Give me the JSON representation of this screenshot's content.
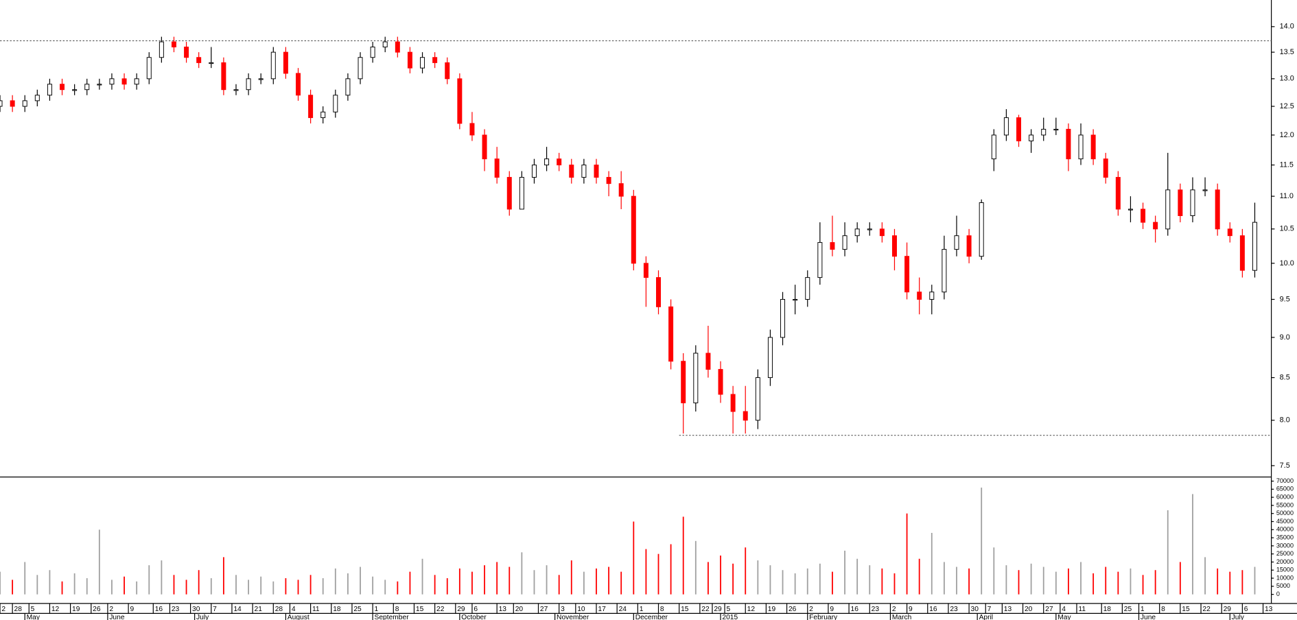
{
  "chart_data": {
    "type": "candlestick",
    "log_y": true,
    "xlim": [
      0,
      307
    ],
    "ylim": [
      7.38,
      14.54
    ],
    "yticks": [
      {
        "value": 7.5,
        "label": "7.5"
      },
      {
        "value": 8,
        "label": "8.0"
      },
      {
        "value": 8.5,
        "label": "8.5"
      },
      {
        "value": 9,
        "label": "9.0"
      },
      {
        "value": 9.5,
        "label": "9.5"
      },
      {
        "value": 10,
        "label": "10.0"
      },
      {
        "value": 10.5,
        "label": "10.5"
      },
      {
        "value": 11,
        "label": "11.0"
      },
      {
        "value": 11.5,
        "label": "11.5"
      },
      {
        "value": 12,
        "label": "12.0"
      },
      {
        "value": 12.5,
        "label": "12.5"
      },
      {
        "value": 13,
        "label": "13.0"
      },
      {
        "value": 13.5,
        "label": "13.5"
      },
      {
        "value": 14,
        "label": "14.0"
      }
    ],
    "xticks": [
      {
        "value": 0,
        "label": "2"
      },
      {
        "value": 3,
        "label": "28"
      },
      {
        "value": 7,
        "label": "5"
      },
      {
        "value": 12,
        "label": "12"
      },
      {
        "value": 17,
        "label": "19"
      },
      {
        "value": 22,
        "label": "26"
      },
      {
        "value": 26,
        "label": "2"
      },
      {
        "value": 31,
        "label": "9"
      },
      {
        "value": 37,
        "label": "16"
      },
      {
        "value": 41,
        "label": "23"
      },
      {
        "value": 46,
        "label": "30"
      },
      {
        "value": 51,
        "label": "7"
      },
      {
        "value": 56,
        "label": "14"
      },
      {
        "value": 61,
        "label": "21"
      },
      {
        "value": 66,
        "label": "28"
      },
      {
        "value": 70,
        "label": "4"
      },
      {
        "value": 75,
        "label": "11"
      },
      {
        "value": 80,
        "label": "18"
      },
      {
        "value": 85,
        "label": "25"
      },
      {
        "value": 90,
        "label": "1"
      },
      {
        "value": 95,
        "label": "8"
      },
      {
        "value": 100,
        "label": "15"
      },
      {
        "value": 105,
        "label": "22"
      },
      {
        "value": 110,
        "label": "29"
      },
      {
        "value": 114,
        "label": "6"
      },
      {
        "value": 120,
        "label": "13"
      },
      {
        "value": 124,
        "label": "20"
      },
      {
        "value": 130,
        "label": "27"
      },
      {
        "value": 135,
        "label": "3"
      },
      {
        "value": 139,
        "label": "10"
      },
      {
        "value": 144,
        "label": "17"
      },
      {
        "value": 149,
        "label": "24"
      },
      {
        "value": 154,
        "label": "1"
      },
      {
        "value": 159,
        "label": "8"
      },
      {
        "value": 164,
        "label": "15"
      },
      {
        "value": 169,
        "label": "22"
      },
      {
        "value": 172,
        "label": "29"
      },
      {
        "value": 175,
        "label": "5"
      },
      {
        "value": 180,
        "label": "12"
      },
      {
        "value": 185,
        "label": "19"
      },
      {
        "value": 190,
        "label": "26"
      },
      {
        "value": 195,
        "label": "2"
      },
      {
        "value": 200,
        "label": "9"
      },
      {
        "value": 205,
        "label": "16"
      },
      {
        "value": 210,
        "label": "23"
      },
      {
        "value": 215,
        "label": "2"
      },
      {
        "value": 219,
        "label": "9"
      },
      {
        "value": 224,
        "label": "16"
      },
      {
        "value": 229,
        "label": "23"
      },
      {
        "value": 234,
        "label": "30"
      },
      {
        "value": 238,
        "label": "7"
      },
      {
        "value": 242,
        "label": "13"
      },
      {
        "value": 247,
        "label": "20"
      },
      {
        "value": 252,
        "label": "27"
      },
      {
        "value": 256,
        "label": "4"
      },
      {
        "value": 260,
        "label": "11"
      },
      {
        "value": 266,
        "label": "18"
      },
      {
        "value": 271,
        "label": "25"
      },
      {
        "value": 275,
        "label": "1"
      },
      {
        "value": 280,
        "label": "8"
      },
      {
        "value": 285,
        "label": "15"
      },
      {
        "value": 290,
        "label": "22"
      },
      {
        "value": 295,
        "label": "29"
      },
      {
        "value": 300,
        "label": "6"
      },
      {
        "value": 305,
        "label": "13"
      }
    ],
    "months": [
      {
        "value": 6,
        "label": "May"
      },
      {
        "value": 26,
        "label": "June"
      },
      {
        "value": 47,
        "label": "July"
      },
      {
        "value": 69,
        "label": "August"
      },
      {
        "value": 90,
        "label": "September"
      },
      {
        "value": 111,
        "label": "October"
      },
      {
        "value": 134,
        "label": "November"
      },
      {
        "value": 153,
        "label": "December"
      },
      {
        "value": 174,
        "label": "2015"
      },
      {
        "value": 195,
        "label": "February"
      },
      {
        "value": 215,
        "label": "March"
      },
      {
        "value": 236,
        "label": "April"
      },
      {
        "value": 255,
        "label": "May"
      },
      {
        "value": 275,
        "label": "June"
      },
      {
        "value": 297,
        "label": "July"
      }
    ],
    "reference_lines": [
      {
        "value": 13.72,
        "x_start": 0
      },
      {
        "value": 7.83,
        "x_start": 164
      }
    ],
    "up_color": "#000000",
    "down_color": "#ff0000",
    "x": [
      0,
      3,
      6,
      9,
      12,
      15,
      18,
      21,
      24,
      27,
      30,
      33,
      36,
      39,
      42,
      45,
      48,
      51,
      54,
      57,
      60,
      63,
      66,
      69,
      72,
      75,
      78,
      81,
      84,
      87,
      90,
      93,
      96,
      99,
      102,
      105,
      108,
      111,
      114,
      117,
      120,
      123,
      126,
      129,
      132,
      135,
      138,
      141,
      144,
      147,
      150,
      153,
      156,
      159,
      162,
      165,
      168,
      171,
      174,
      177,
      180,
      183,
      186,
      189,
      192,
      195,
      198,
      201,
      204,
      207,
      210,
      213,
      216,
      219,
      222,
      225,
      228,
      231,
      234,
      237,
      240,
      243,
      246,
      249,
      252,
      255,
      258,
      261,
      264,
      267,
      270,
      273,
      276,
      279,
      282,
      285,
      288,
      291,
      294,
      297,
      300,
      303
    ],
    "open": [
      12.5,
      12.6,
      12.5,
      12.6,
      12.7,
      12.9,
      12.8,
      12.8,
      12.9,
      12.9,
      13.0,
      12.9,
      13.0,
      13.4,
      13.7,
      13.6,
      13.4,
      13.3,
      13.3,
      12.8,
      12.8,
      13.0,
      13.0,
      13.5,
      13.1,
      12.7,
      12.3,
      12.4,
      12.7,
      13.0,
      13.4,
      13.6,
      13.7,
      13.5,
      13.2,
      13.4,
      13.3,
      13.0,
      12.2,
      12.0,
      11.6,
      11.3,
      10.8,
      11.3,
      11.5,
      11.6,
      11.5,
      11.3,
      11.5,
      11.3,
      11.2,
      11.0,
      10.0,
      9.8,
      9.4,
      8.7,
      8.2,
      8.8,
      8.6,
      8.3,
      8.1,
      8.0,
      8.5,
      9.0,
      9.5,
      9.5,
      9.8,
      10.3,
      10.2,
      10.4,
      10.5,
      10.5,
      10.4,
      10.1,
      9.6,
      9.5,
      9.6,
      10.2,
      10.4,
      10.1,
      11.6,
      12.0,
      12.3,
      11.9,
      12.0,
      12.1,
      12.1,
      11.6,
      12.0,
      11.6,
      11.3,
      10.8,
      10.8,
      10.6,
      10.5,
      11.1,
      10.7,
      11.1,
      11.1,
      10.5,
      10.4,
      9.9
    ],
    "high": [
      12.7,
      12.7,
      12.7,
      12.8,
      13.0,
      13.0,
      12.9,
      13.0,
      13.0,
      13.1,
      13.1,
      13.1,
      13.5,
      13.8,
      13.8,
      13.7,
      13.5,
      13.6,
      13.4,
      12.9,
      13.1,
      13.1,
      13.6,
      13.6,
      13.2,
      12.8,
      12.5,
      12.8,
      13.1,
      13.5,
      13.7,
      13.8,
      13.8,
      13.6,
      13.5,
      13.5,
      13.4,
      13.1,
      12.4,
      12.1,
      11.8,
      11.4,
      11.4,
      11.6,
      11.8,
      11.7,
      11.6,
      11.6,
      11.6,
      11.4,
      11.4,
      11.1,
      10.1,
      9.9,
      9.5,
      8.8,
      8.9,
      9.15,
      8.7,
      8.4,
      8.4,
      8.6,
      9.1,
      9.6,
      9.7,
      9.9,
      10.6,
      10.7,
      10.6,
      10.6,
      10.6,
      10.6,
      10.5,
      10.3,
      9.8,
      9.7,
      10.4,
      10.7,
      10.5,
      10.95,
      12.1,
      12.45,
      12.35,
      12.1,
      12.3,
      12.3,
      12.2,
      12.2,
      12.1,
      11.7,
      11.4,
      11.0,
      10.9,
      10.7,
      11.7,
      11.2,
      11.3,
      11.3,
      11.2,
      10.6,
      10.5,
      10.9
    ],
    "low": [
      12.4,
      12.4,
      12.4,
      12.5,
      12.6,
      12.7,
      12.7,
      12.7,
      12.8,
      12.8,
      12.8,
      12.8,
      12.9,
      13.3,
      13.5,
      13.3,
      13.2,
      13.2,
      12.7,
      12.7,
      12.7,
      12.9,
      12.9,
      13.0,
      12.6,
      12.2,
      12.2,
      12.3,
      12.6,
      12.9,
      13.3,
      13.5,
      13.4,
      13.1,
      13.1,
      13.2,
      12.9,
      12.1,
      11.9,
      11.4,
      11.2,
      10.7,
      10.8,
      11.2,
      11.4,
      11.4,
      11.2,
      11.2,
      11.2,
      11.0,
      10.8,
      9.9,
      9.4,
      9.3,
      8.6,
      7.85,
      8.1,
      8.5,
      8.2,
      7.85,
      7.85,
      7.9,
      8.4,
      8.9,
      9.3,
      9.4,
      9.7,
      10.1,
      10.1,
      10.3,
      10.4,
      10.3,
      9.9,
      9.5,
      9.3,
      9.3,
      9.5,
      10.1,
      10.0,
      10.05,
      11.4,
      11.9,
      11.8,
      11.7,
      11.9,
      12.0,
      11.4,
      11.5,
      11.5,
      11.2,
      10.7,
      10.6,
      10.5,
      10.3,
      10.4,
      10.6,
      10.6,
      11.0,
      10.4,
      10.3,
      9.8,
      9.8
    ],
    "close": [
      12.6,
      12.5,
      12.6,
      12.7,
      12.9,
      12.8,
      12.8,
      12.9,
      12.9,
      13.0,
      12.9,
      13.0,
      13.4,
      13.7,
      13.6,
      13.4,
      13.3,
      13.3,
      12.8,
      12.8,
      13.0,
      13.0,
      13.5,
      13.1,
      12.7,
      12.3,
      12.4,
      12.7,
      13.0,
      13.4,
      13.6,
      13.7,
      13.5,
      13.2,
      13.4,
      13.3,
      13.0,
      12.2,
      12.0,
      11.6,
      11.3,
      10.8,
      11.3,
      11.5,
      11.6,
      11.5,
      11.3,
      11.5,
      11.3,
      11.2,
      11.0,
      10.0,
      9.8,
      9.4,
      8.7,
      8.2,
      8.8,
      8.6,
      8.3,
      8.1,
      8.0,
      8.5,
      9.0,
      9.5,
      9.5,
      9.8,
      10.3,
      10.2,
      10.4,
      10.5,
      10.5,
      10.4,
      10.1,
      9.6,
      9.5,
      9.6,
      10.2,
      10.4,
      10.1,
      10.9,
      12.0,
      12.3,
      11.9,
      12.0,
      12.1,
      12.1,
      11.6,
      12.0,
      11.6,
      11.3,
      10.8,
      10.8,
      10.6,
      10.5,
      11.1,
      10.7,
      11.1,
      11.1,
      10.5,
      10.4,
      9.9,
      10.6
    ],
    "volume": {
      "ylim": [
        0,
        70000
      ],
      "yticks": [
        0,
        5000,
        10000,
        15000,
        20000,
        25000,
        30000,
        35000,
        40000,
        45000,
        50000,
        55000,
        60000,
        65000,
        70000
      ],
      "up_color": "#a0a0a0",
      "down_color": "#ff0000",
      "values": [
        14000,
        9000,
        20000,
        12000,
        15000,
        8000,
        13000,
        10000,
        40000,
        9000,
        11000,
        8000,
        18000,
        21000,
        12000,
        9000,
        15000,
        10000,
        23000,
        12000,
        9000,
        11000,
        8000,
        10000,
        9000,
        12000,
        10000,
        16000,
        13000,
        17000,
        11000,
        9000,
        8000,
        14000,
        22000,
        12000,
        10000,
        16000,
        14000,
        18000,
        20000,
        17000,
        26000,
        15000,
        18000,
        12000,
        21000,
        14000,
        16000,
        17000,
        14000,
        45000,
        28000,
        25000,
        31000,
        48000,
        33000,
        20000,
        24000,
        19000,
        29000,
        21000,
        18000,
        15000,
        13000,
        16000,
        19000,
        14000,
        27000,
        22000,
        18000,
        16000,
        13000,
        50000,
        22000,
        38000,
        20000,
        17000,
        16000,
        66000,
        29000,
        18000,
        15000,
        19000,
        17000,
        14000,
        16000,
        20000,
        13000,
        17000,
        14000,
        16000,
        12000,
        15000,
        52000,
        20000,
        62000,
        23000,
        16000,
        14000,
        15000,
        17000
      ]
    }
  }
}
